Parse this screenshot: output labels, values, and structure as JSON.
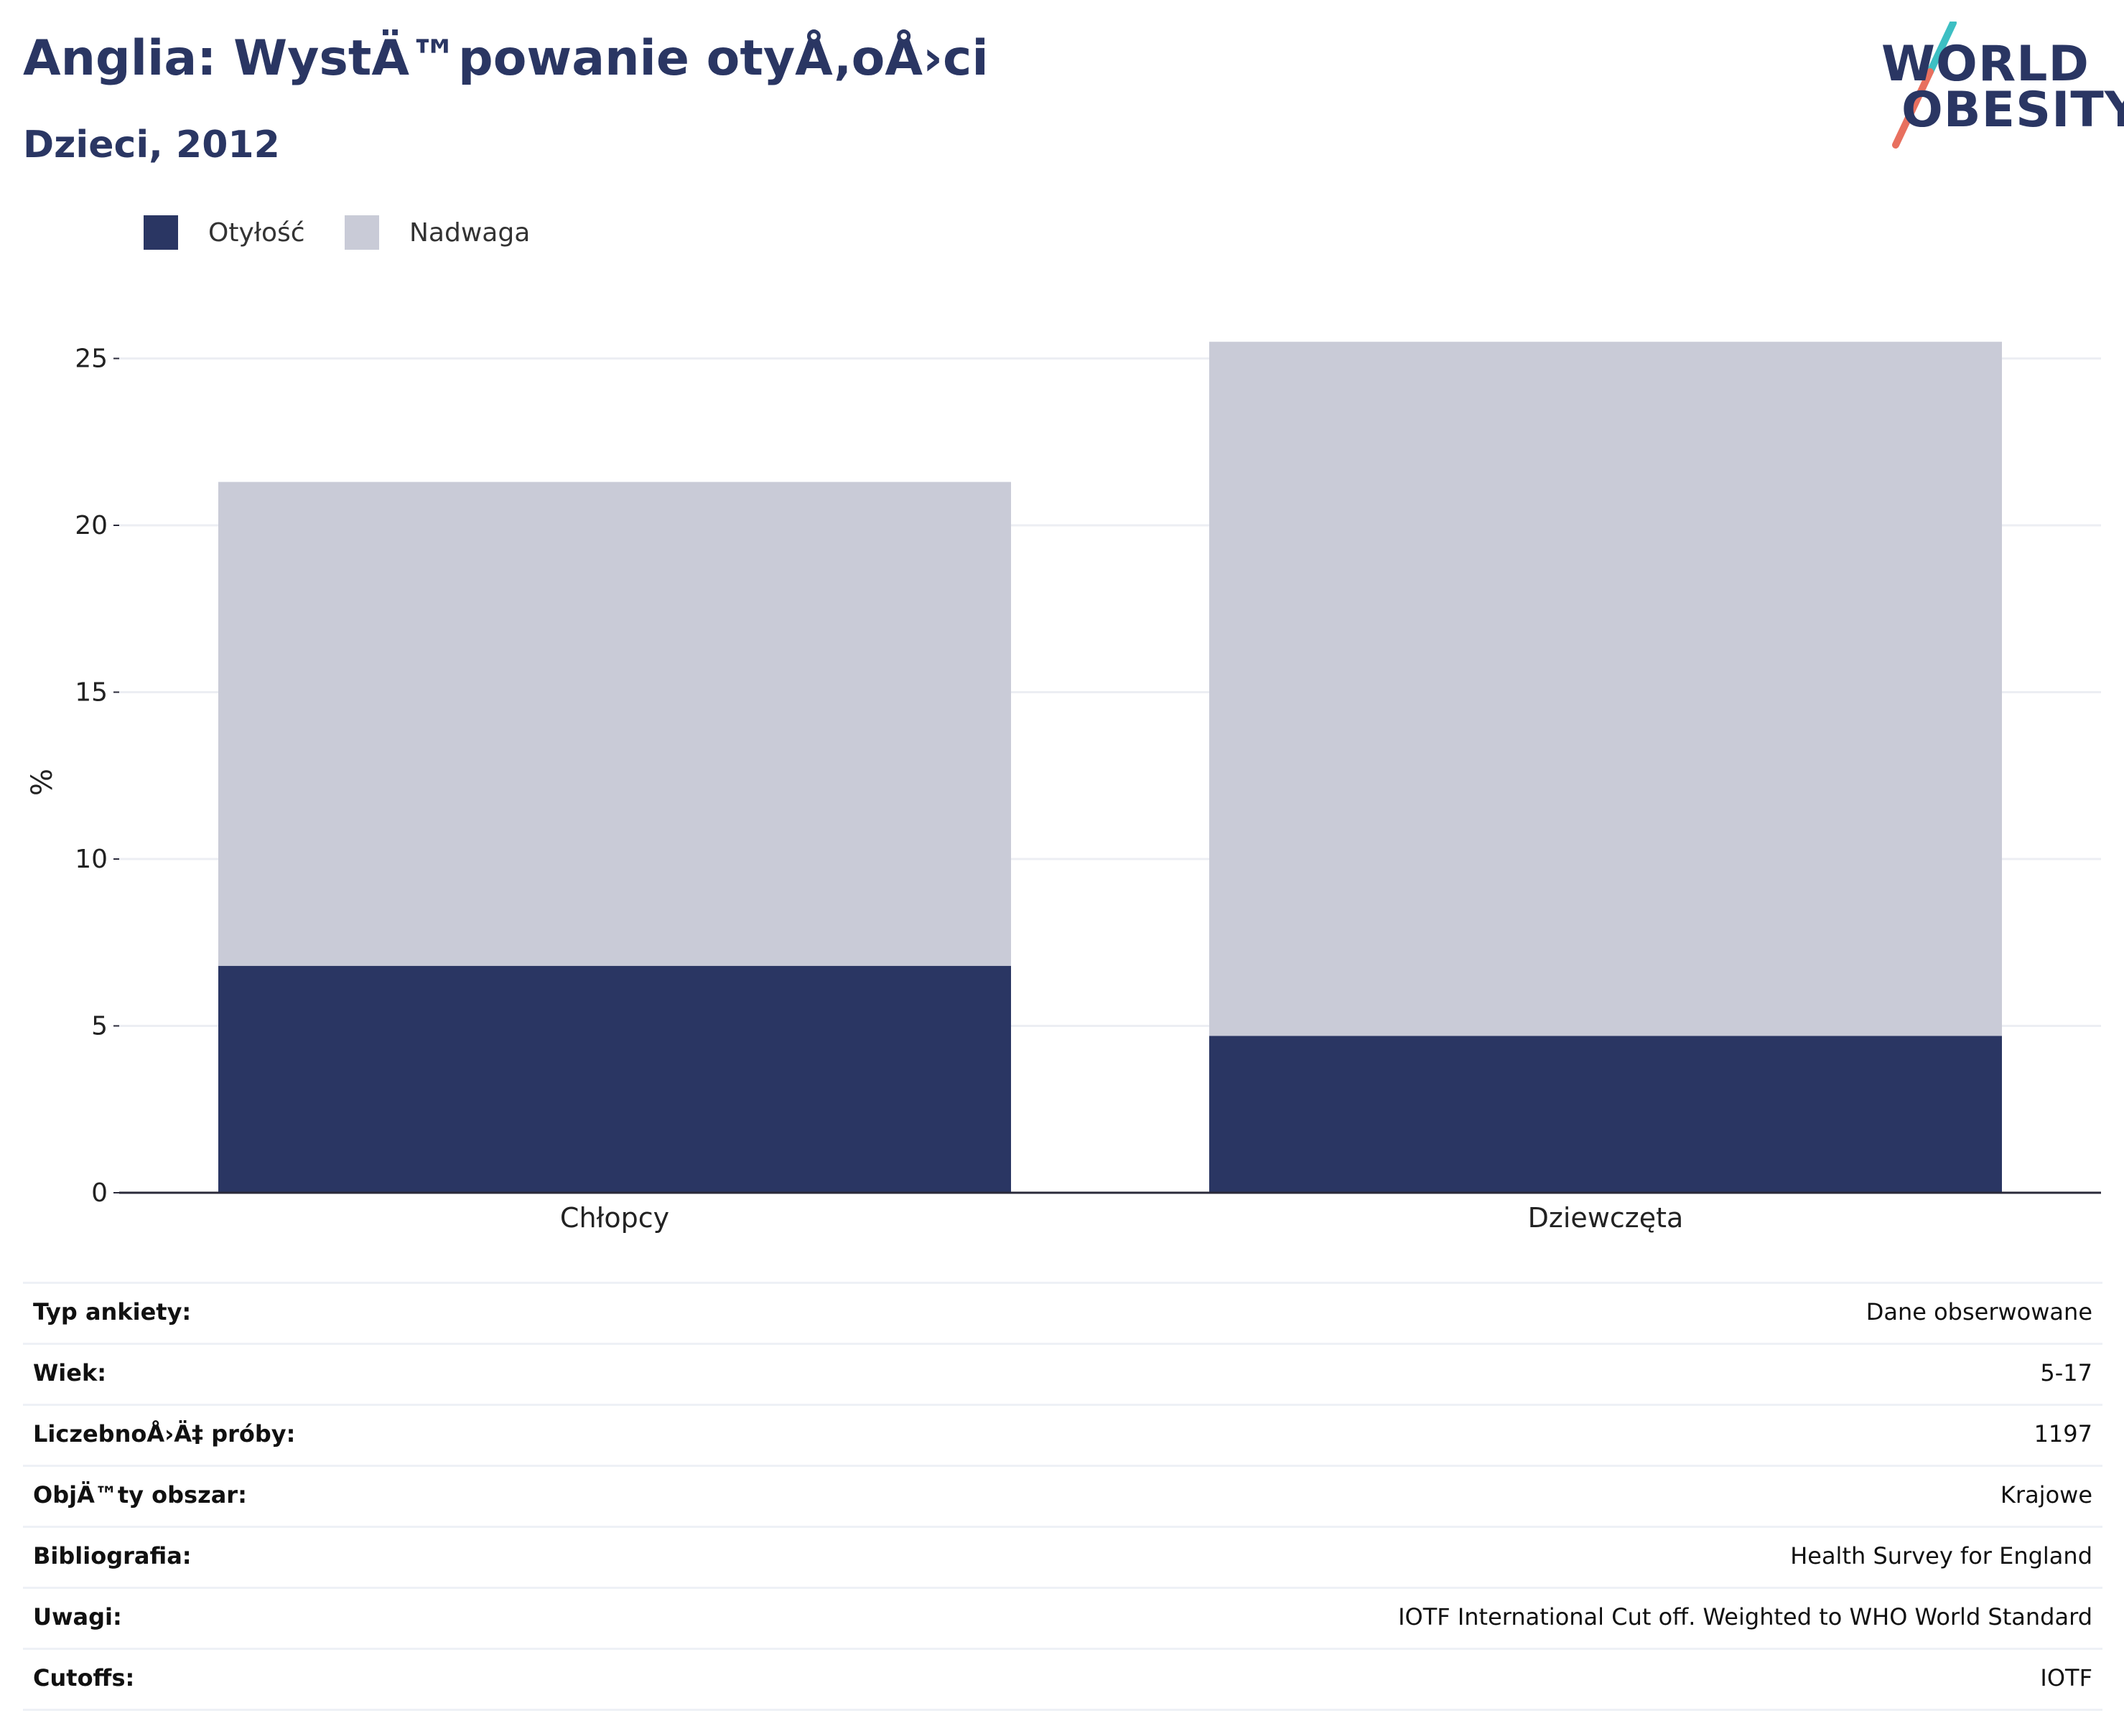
{
  "header": {
    "title": "Anglia: WystÄ™powanie otyÅ‚oÅ›ci",
    "subtitle": "Dzieci, 2012"
  },
  "logo": {
    "line1": "WORLD",
    "line2": "OBESITY",
    "slash_colors": [
      "#3dbfc3",
      "#e8705f"
    ]
  },
  "colors": {
    "obesity": "#2a3663",
    "overweight": "#c9cbd7",
    "grid": "#eceef3",
    "axis": "#2a2a3a"
  },
  "legend": [
    {
      "label": "Otyłość",
      "color": "#2a3663"
    },
    {
      "label": "Nadwaga",
      "color": "#c9cbd7"
    }
  ],
  "chart_data": {
    "type": "bar",
    "stacked": true,
    "categories": [
      "Chłopcy",
      "Dziewczęta"
    ],
    "series": [
      {
        "name": "Otyłość",
        "values": [
          6.8,
          4.7
        ],
        "color": "#2a3663"
      },
      {
        "name": "Nadwaga",
        "values": [
          14.5,
          20.8
        ],
        "color": "#c9cbd7"
      }
    ],
    "ylabel": "%",
    "ylim": [
      0,
      28
    ],
    "yticks": [
      0,
      5,
      10,
      15,
      20,
      25
    ],
    "grid": true,
    "legend_position": "top-left"
  },
  "meta": [
    {
      "key": "Typ ankiety:",
      "value": "Dane obserwowane"
    },
    {
      "key": "Wiek:",
      "value": "5-17"
    },
    {
      "key": "LiczebnoÅ›Ä‡ próby:",
      "value": "1197"
    },
    {
      "key": "ObjÄ™ty obszar:",
      "value": "Krajowe"
    },
    {
      "key": "Bibliografia:",
      "value": "Health Survey for England"
    },
    {
      "key": "Uwagi:",
      "value": "IOTF International Cut off. Weighted to WHO World Standard"
    },
    {
      "key": "Cutoffs:",
      "value": "IOTF"
    }
  ]
}
